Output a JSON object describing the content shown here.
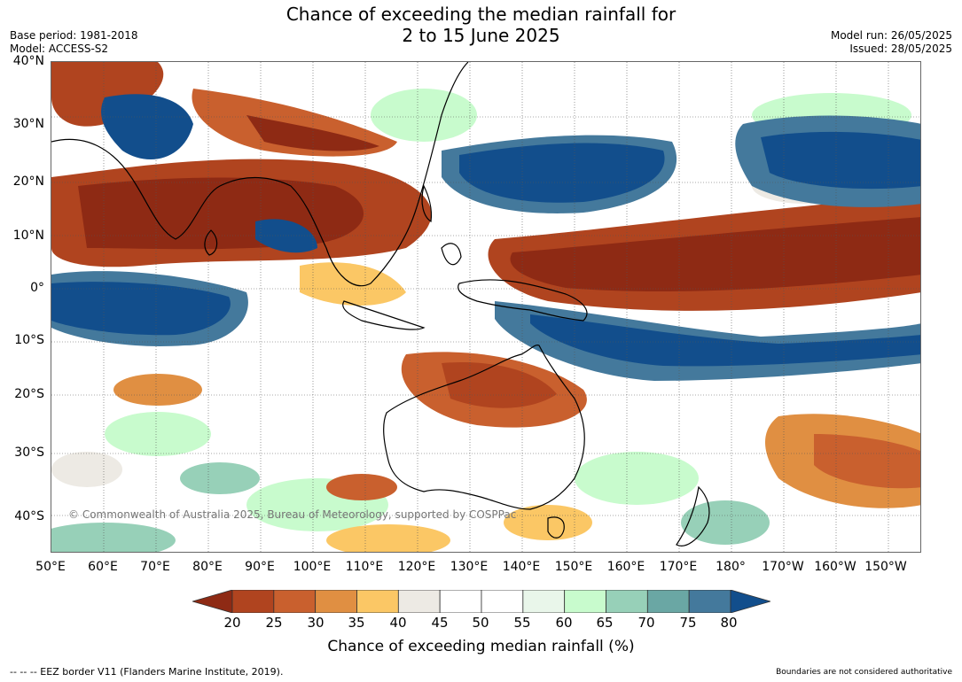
{
  "title_line1": "Chance of exceeding the median rainfall for",
  "title_line2": "2 to 15 June 2025",
  "meta_left": [
    "Base period: 1981-2018",
    "Model: ACCESS-S2"
  ],
  "meta_right": [
    "Model run: 26/05/2025",
    "Issued: 28/05/2025"
  ],
  "lat_labels": [
    "40°N",
    "30°N",
    "20°N",
    "10°N",
    "0°",
    "10°S",
    "20°S",
    "30°S",
    "40°S"
  ],
  "lon_labels": [
    "50°E",
    "60°E",
    "70°E",
    "80°E",
    "90°E",
    "100°E",
    "110°E",
    "120°E",
    "130°E",
    "140°E",
    "150°E",
    "160°E",
    "170°E",
    "180°",
    "170°W",
    "160°W",
    "150°W"
  ],
  "copyright": "© Commonwealth of Australia 2025, Bureau of Meteorology, supported by COSPPac",
  "colorbar": {
    "ticks": [
      "20",
      "25",
      "30",
      "35",
      "40",
      "45",
      "50",
      "55",
      "60",
      "65",
      "70",
      "75",
      "80"
    ],
    "colors": [
      "#8e2a14",
      "#b0441f",
      "#c9602e",
      "#e08f42",
      "#fbc765",
      "#edeae4",
      "#ffffff",
      "#ffffff",
      "#e9f6ea",
      "#c8fbcd",
      "#97d0b8",
      "#6aa7a4",
      "#44799c",
      "#124e8c"
    ],
    "label": "Chance of exceeding median rainfall (%)"
  },
  "footer_left": "--  --  -- EEZ border V11 (Flanders Marine Institute, 2019).",
  "footer_right": "Boundaries are not considered authoritative"
}
